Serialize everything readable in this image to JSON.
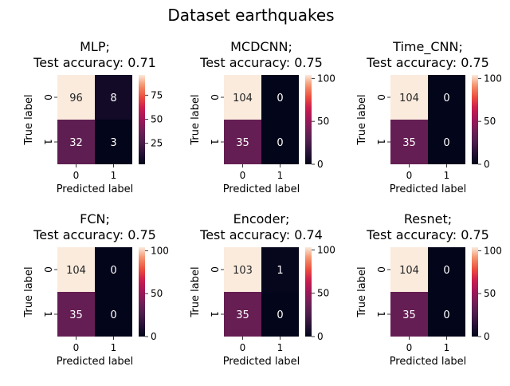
{
  "suptitle": "Dataset earthquakes",
  "chart_data": [
    {
      "type": "heatmap",
      "title_line1": "MLP;",
      "title_line2": "Test accuracy: 0.71",
      "xlabel": "Predicted label",
      "ylabel": "True label",
      "x_categories": [
        "0",
        "1"
      ],
      "y_categories": [
        "0",
        "1"
      ],
      "values": [
        [
          96,
          8
        ],
        [
          32,
          3
        ]
      ],
      "colorbar_ticks": [
        25,
        50,
        75
      ],
      "colorbar_range": [
        3,
        96
      ]
    },
    {
      "type": "heatmap",
      "title_line1": "MCDCNN;",
      "title_line2": "Test accuracy: 0.75",
      "xlabel": "Predicted label",
      "ylabel": "True label",
      "x_categories": [
        "0",
        "1"
      ],
      "y_categories": [
        "0",
        "1"
      ],
      "values": [
        [
          104,
          0
        ],
        [
          35,
          0
        ]
      ],
      "colorbar_ticks": [
        0,
        50,
        100
      ],
      "colorbar_range": [
        0,
        104
      ]
    },
    {
      "type": "heatmap",
      "title_line1": "Time_CNN;",
      "title_line2": "Test accuracy: 0.75",
      "xlabel": "Predicted label",
      "ylabel": "True label",
      "x_categories": [
        "0",
        "1"
      ],
      "y_categories": [
        "0",
        "1"
      ],
      "values": [
        [
          104,
          0
        ],
        [
          35,
          0
        ]
      ],
      "colorbar_ticks": [
        0,
        50,
        100
      ],
      "colorbar_range": [
        0,
        104
      ]
    },
    {
      "type": "heatmap",
      "title_line1": "FCN;",
      "title_line2": "Test accuracy: 0.75",
      "xlabel": "Predicted label",
      "ylabel": "True label",
      "x_categories": [
        "0",
        "1"
      ],
      "y_categories": [
        "0",
        "1"
      ],
      "values": [
        [
          104,
          0
        ],
        [
          35,
          0
        ]
      ],
      "colorbar_ticks": [
        0,
        50,
        100
      ],
      "colorbar_range": [
        0,
        104
      ]
    },
    {
      "type": "heatmap",
      "title_line1": "Encoder;",
      "title_line2": "Test accuracy: 0.74",
      "xlabel": "Predicted label",
      "ylabel": "True label",
      "x_categories": [
        "0",
        "1"
      ],
      "y_categories": [
        "0",
        "1"
      ],
      "values": [
        [
          103,
          1
        ],
        [
          35,
          0
        ]
      ],
      "colorbar_ticks": [
        0,
        50,
        100
      ],
      "colorbar_range": [
        0,
        103
      ]
    },
    {
      "type": "heatmap",
      "title_line1": "Resnet;",
      "title_line2": "Test accuracy: 0.75",
      "xlabel": "Predicted label",
      "ylabel": "True label",
      "x_categories": [
        "0",
        "1"
      ],
      "y_categories": [
        "0",
        "1"
      ],
      "values": [
        [
          104,
          0
        ],
        [
          35,
          0
        ]
      ],
      "colorbar_ticks": [
        0,
        50,
        100
      ],
      "colorbar_range": [
        0,
        104
      ]
    }
  ]
}
